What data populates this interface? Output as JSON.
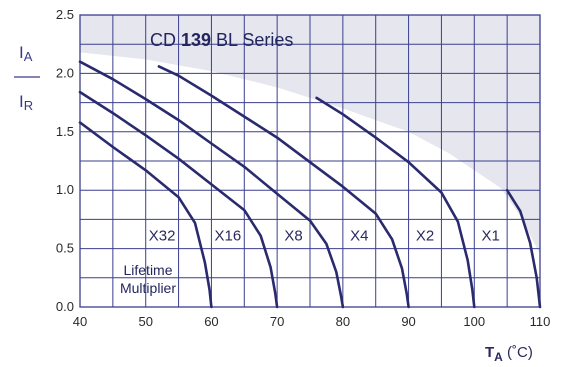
{
  "chart_data": {
    "type": "line",
    "title": {
      "prefix": "CD ",
      "bold": "139",
      "suffix": " BL Series"
    },
    "ylabel": {
      "numerator": "I",
      "numerator_sub": "A",
      "denominator": "I",
      "denominator_sub": "R"
    },
    "xlabel": {
      "main": "T",
      "sub": "A",
      "unit": " (˚C)"
    },
    "annotation": [
      "Lifetime",
      "Multiplier"
    ],
    "xlim": [
      40,
      110
    ],
    "ylim": [
      0,
      2.5
    ],
    "xticks": [
      "40",
      "50",
      "60",
      "70",
      "80",
      "90",
      "100",
      "110"
    ],
    "yticks": [
      "0.0",
      "0.5",
      "1.0",
      "1.5",
      "2.0",
      "2.5"
    ],
    "grid": true,
    "colors": {
      "curve": "#2a2a6e",
      "grid": "#3b3f8f",
      "shade": "#e6e6ef",
      "axis": "#3b3f8f"
    },
    "shaded_region": {
      "boundary": [
        [
          40,
          2.18
        ],
        [
          50,
          2.12
        ],
        [
          60,
          2.02
        ],
        [
          70,
          1.88
        ],
        [
          80,
          1.7
        ],
        [
          90,
          1.5
        ],
        [
          96,
          1.32
        ],
        [
          100,
          1.17
        ],
        [
          104,
          1.02
        ],
        [
          107,
          0.78
        ],
        [
          110,
          0.45
        ]
      ]
    },
    "series": [
      {
        "label": "X32",
        "label_pos": [
          52.5,
          0.5
        ],
        "points": [
          [
            40,
            1.58
          ],
          [
            45,
            1.37
          ],
          [
            50,
            1.17
          ],
          [
            55,
            0.94
          ],
          [
            57.5,
            0.72
          ],
          [
            59,
            0.38
          ],
          [
            59.7,
            0.15
          ],
          [
            60,
            0
          ]
        ]
      },
      {
        "label": "X16",
        "label_pos": [
          62.5,
          0.5
        ],
        "points": [
          [
            40,
            1.84
          ],
          [
            45,
            1.66
          ],
          [
            50,
            1.47
          ],
          [
            55,
            1.27
          ],
          [
            60,
            1.05
          ],
          [
            65,
            0.83
          ],
          [
            67.5,
            0.61
          ],
          [
            69,
            0.34
          ],
          [
            69.7,
            0.12
          ],
          [
            70,
            0
          ]
        ]
      },
      {
        "label": "X8",
        "label_pos": [
          72.5,
          0.5
        ],
        "points": [
          [
            40,
            2.1
          ],
          [
            45,
            1.95
          ],
          [
            50,
            1.78
          ],
          [
            55,
            1.6
          ],
          [
            60,
            1.4
          ],
          [
            65,
            1.2
          ],
          [
            70,
            0.97
          ],
          [
            75,
            0.74
          ],
          [
            77.5,
            0.54
          ],
          [
            79,
            0.3
          ],
          [
            79.7,
            0.1
          ],
          [
            80,
            0
          ]
        ]
      },
      {
        "label": "X4",
        "label_pos": [
          82.5,
          0.5
        ],
        "points": [
          [
            52,
            2.06
          ],
          [
            55,
            1.98
          ],
          [
            60,
            1.81
          ],
          [
            65,
            1.63
          ],
          [
            70,
            1.45
          ],
          [
            75,
            1.24
          ],
          [
            80,
            1.03
          ],
          [
            85,
            0.8
          ],
          [
            87.5,
            0.58
          ],
          [
            89,
            0.33
          ],
          [
            89.7,
            0.12
          ],
          [
            90,
            0
          ]
        ]
      },
      {
        "label": "X2",
        "label_pos": [
          92.5,
          0.5
        ],
        "points": [
          [
            76,
            1.79
          ],
          [
            80,
            1.65
          ],
          [
            85,
            1.45
          ],
          [
            90,
            1.24
          ],
          [
            95,
            0.98
          ],
          [
            97.5,
            0.73
          ],
          [
            99,
            0.4
          ],
          [
            99.7,
            0.15
          ],
          [
            100,
            0
          ]
        ]
      },
      {
        "label": "X1",
        "label_pos": [
          102.5,
          0.5
        ],
        "points": [
          [
            105,
            1.0
          ],
          [
            107,
            0.82
          ],
          [
            108.5,
            0.55
          ],
          [
            109.5,
            0.25
          ],
          [
            110,
            0
          ]
        ]
      }
    ]
  }
}
